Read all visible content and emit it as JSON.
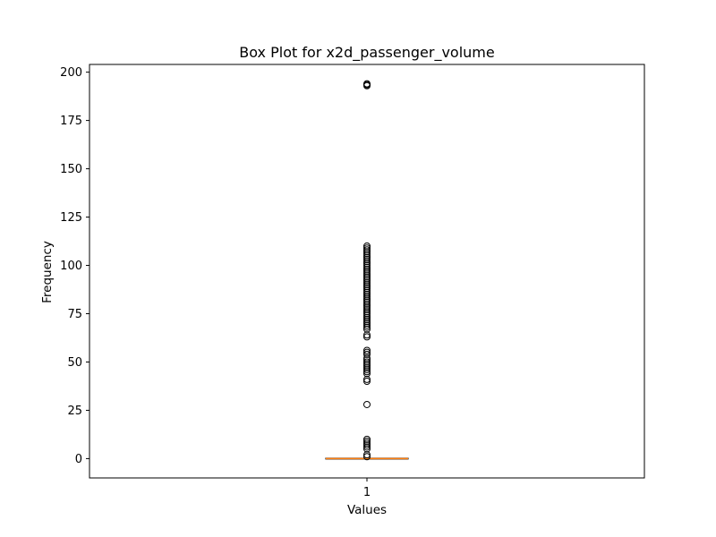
{
  "chart_data": {
    "type": "box",
    "title": "Box Plot for x2d_passenger_volume",
    "xlabel": "Values",
    "ylabel": "Frequency",
    "categories": [
      "1"
    ],
    "ylim": [
      -10,
      204
    ],
    "yticks": [
      0,
      25,
      50,
      75,
      100,
      125,
      150,
      175,
      200
    ],
    "grid": false,
    "box": {
      "q1": 0,
      "median": 0,
      "q3": 0,
      "whisker_low": 0,
      "whisker_high": 0
    },
    "outliers": [
      194,
      193.5,
      193,
      110,
      109,
      108,
      107,
      106,
      105,
      104,
      103,
      102,
      101,
      100,
      99,
      98,
      97,
      96,
      95,
      94,
      93,
      92,
      91,
      90,
      89,
      88,
      87,
      86,
      85,
      84,
      83,
      82,
      81,
      80,
      79,
      78,
      77,
      76,
      75,
      74,
      73,
      72,
      71,
      70,
      69,
      68,
      67,
      64,
      63,
      56,
      55,
      54,
      52,
      51,
      50,
      49,
      48,
      47,
      46,
      45,
      44,
      41,
      40,
      28,
      10,
      9,
      8,
      7,
      6,
      5,
      2,
      1
    ],
    "colors": {
      "median": "#ff7f0e",
      "box": "#000000",
      "outlier_edge": "#000000"
    }
  }
}
